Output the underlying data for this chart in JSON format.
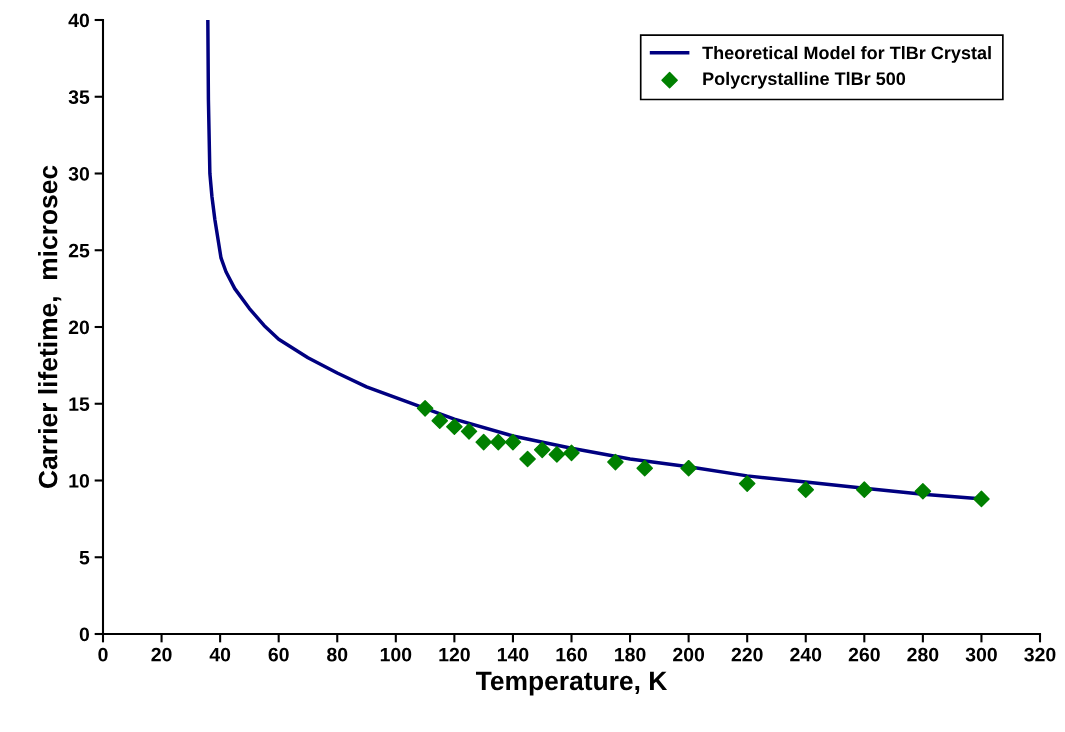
{
  "chart_data": {
    "type": "line",
    "xlabel": "Temperature, K",
    "ylabel": "Carrier lifetime,  microsec",
    "xlim": [
      0,
      320
    ],
    "xticks": [
      0,
      20,
      40,
      60,
      80,
      100,
      120,
      140,
      160,
      180,
      200,
      220,
      240,
      260,
      280,
      300,
      320
    ],
    "ylim": [
      0,
      40
    ],
    "yticks": [
      0,
      5,
      10,
      15,
      20,
      25,
      30,
      35,
      40
    ],
    "grid": false,
    "legend": "top right",
    "series": [
      {
        "name": "Theoretical Model for TlBr Crystal",
        "color": "#000080",
        "marker": "none",
        "line_style": "solid",
        "x": [
          35.8,
          36.0,
          36.5,
          37.2,
          38.2,
          40.3,
          42,
          45,
          50,
          55,
          60,
          70,
          80,
          90,
          100,
          110,
          120,
          140,
          160,
          180,
          200,
          220,
          240,
          260,
          280,
          300
        ],
        "values": [
          40,
          34.8,
          30,
          28.5,
          27.0,
          24.5,
          23.6,
          22.5,
          21.2,
          20.1,
          19.2,
          18.0,
          17.0,
          16.1,
          15.4,
          14.7,
          14.0,
          12.9,
          12.1,
          11.4,
          10.9,
          10.3,
          9.9,
          9.5,
          9.1,
          8.8
        ]
      },
      {
        "name": "Polycrystalline TlBr 500",
        "type": "scatter",
        "color": "#008000",
        "marker": "diamond",
        "x": [
          110,
          115,
          120,
          125,
          130,
          135,
          140,
          145,
          150,
          155,
          160,
          175,
          185,
          200,
          220,
          240,
          260,
          280,
          300
        ],
        "values": [
          14.7,
          13.9,
          13.5,
          13.2,
          12.5,
          12.5,
          12.5,
          11.4,
          12.0,
          11.7,
          11.8,
          11.2,
          10.8,
          10.8,
          9.8,
          9.4,
          9.4,
          9.3,
          8.8
        ]
      }
    ]
  }
}
